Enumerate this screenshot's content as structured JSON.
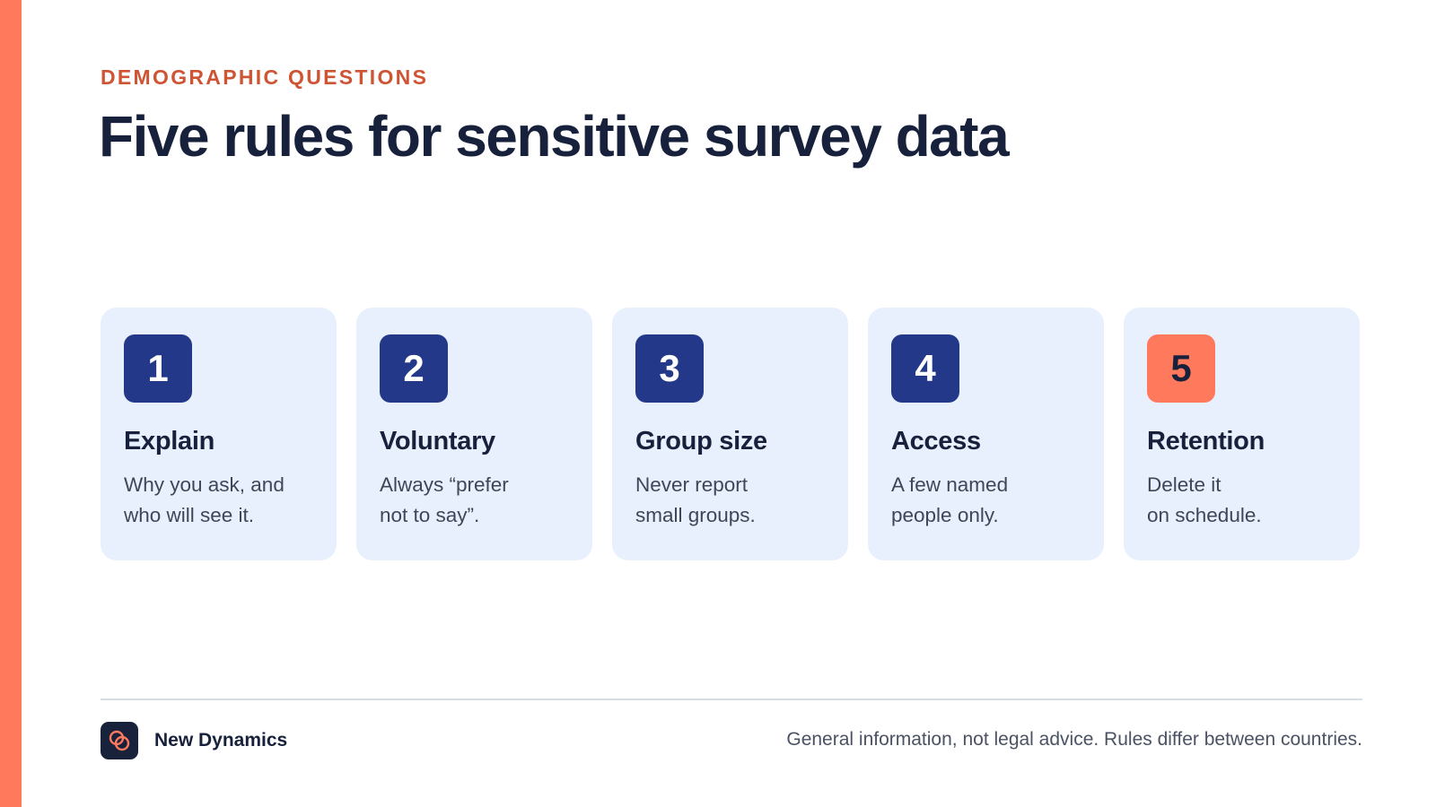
{
  "slide": {
    "eyebrow": "DEMOGRAPHIC QUESTIONS",
    "title": "Five rules for sensitive survey data"
  },
  "cards": [
    {
      "number": "1",
      "title": "Explain",
      "lines": [
        "Why you ask, and",
        "who will see it."
      ]
    },
    {
      "number": "2",
      "title": "Voluntary",
      "lines": [
        "Always “prefer",
        "not to say”."
      ]
    },
    {
      "number": "3",
      "title": "Group size",
      "lines": [
        "Never report",
        "small groups."
      ]
    },
    {
      "number": "4",
      "title": "Access",
      "lines": [
        "A few named",
        "people only."
      ]
    },
    {
      "number": "5",
      "title": "Retention",
      "lines": [
        "Delete it",
        "on schedule."
      ]
    }
  ],
  "footer": {
    "brand_name": "New Dynamics",
    "brand_icon": "interlocking-rings-icon",
    "disclaimer": "General information, not legal advice. Rules differ between countries."
  },
  "colors": {
    "accent": "#ff7a5c",
    "eyebrow": "#cf5434",
    "navy": "#24388a",
    "card_background": "#e8f0fd",
    "text_dark": "#17213c"
  }
}
